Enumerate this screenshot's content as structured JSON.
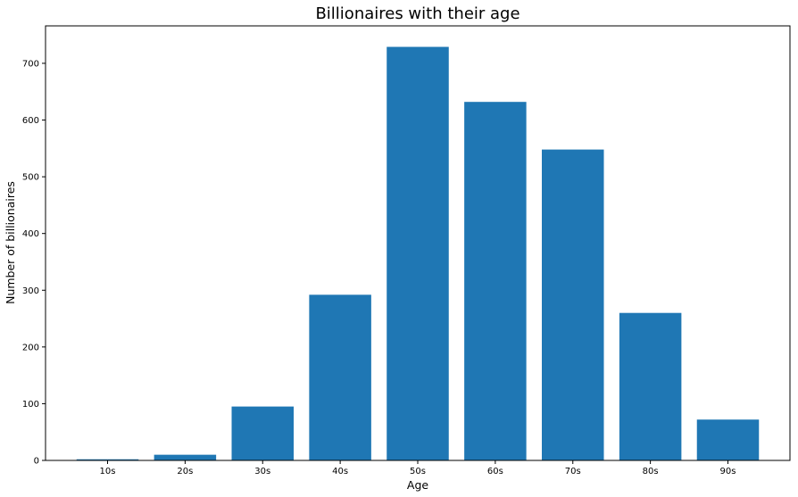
{
  "chart_data": {
    "type": "bar",
    "title": "Billionaires with their age",
    "xlabel": "Age",
    "ylabel": "Number of billionaires",
    "categories": [
      "10s",
      "20s",
      "30s",
      "40s",
      "50s",
      "60s",
      "70s",
      "80s",
      "90s"
    ],
    "values": [
      2,
      10,
      95,
      292,
      729,
      632,
      548,
      260,
      72
    ],
    "ylim": [
      0,
      766
    ],
    "yticks": [
      0,
      100,
      200,
      300,
      400,
      500,
      600,
      700
    ],
    "grid": false,
    "legend": "none",
    "bar_color": "#1f77b4"
  }
}
